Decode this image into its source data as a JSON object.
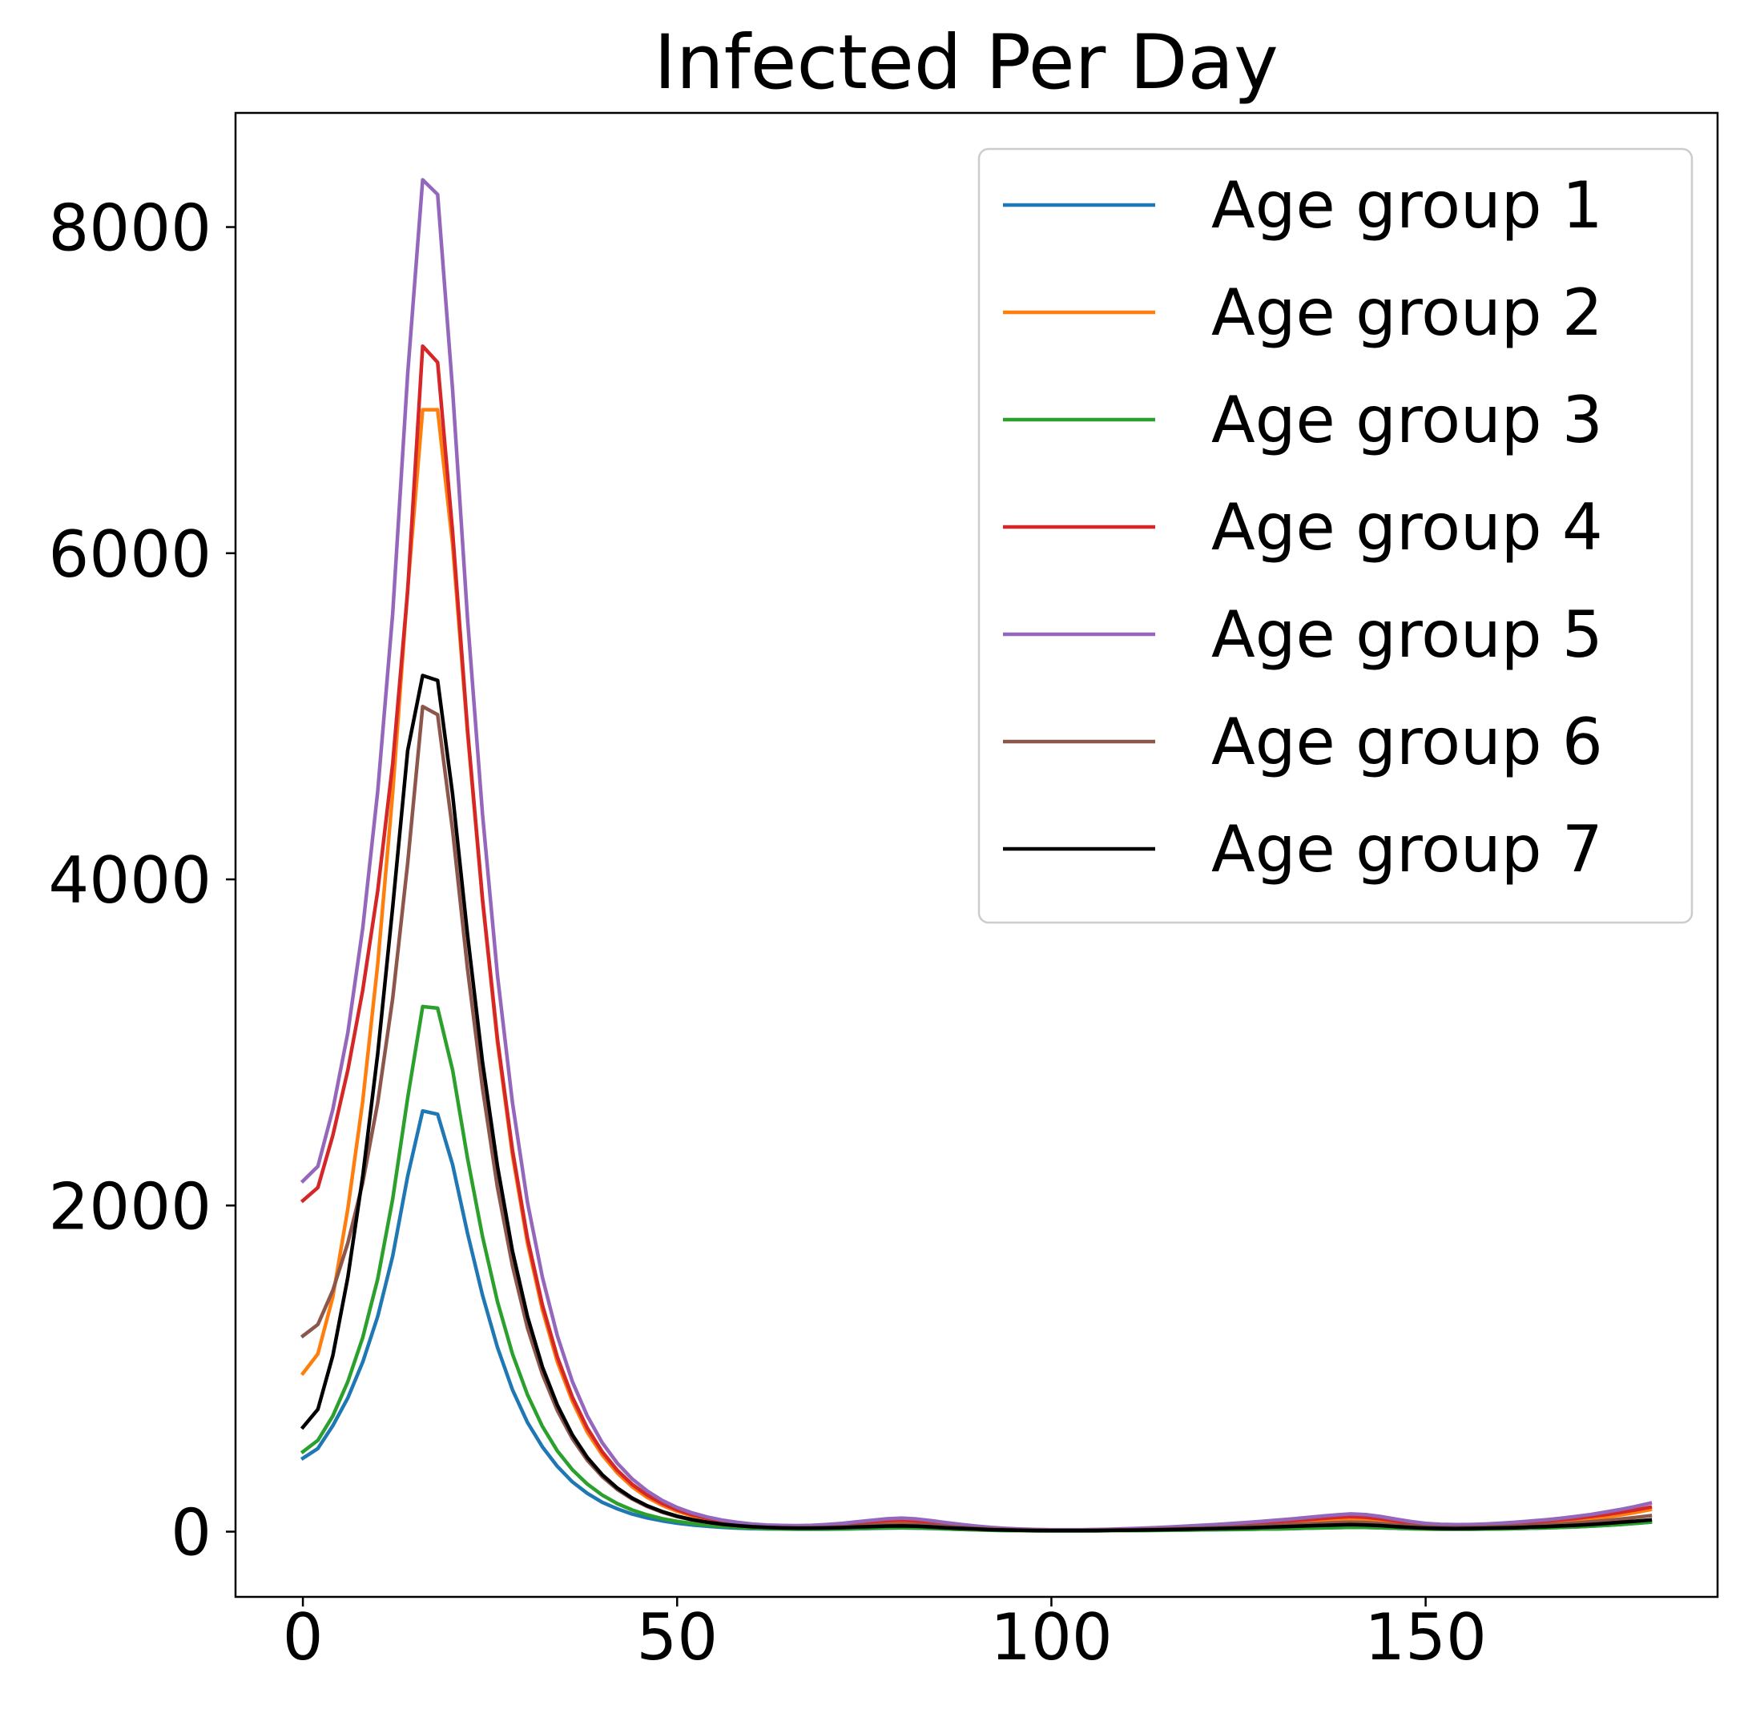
{
  "chart_data": {
    "type": "line",
    "title": "Infected Per Day",
    "xlabel": "",
    "ylabel": "",
    "xlim": [
      -9,
      189
    ],
    "ylim": [
      -400,
      8700
    ],
    "xticks": [
      0,
      50,
      100,
      150
    ],
    "yticks": [
      0,
      2000,
      4000,
      6000,
      8000
    ],
    "grid": false,
    "legend_position": "top-right",
    "x": [
      0,
      2,
      4,
      6,
      8,
      10,
      12,
      14,
      16,
      18,
      20,
      22,
      24,
      26,
      28,
      30,
      32,
      34,
      36,
      38,
      40,
      42,
      44,
      46,
      48,
      50,
      52,
      54,
      56,
      58,
      60,
      62,
      64,
      66,
      68,
      70,
      72,
      74,
      76,
      78,
      80,
      82,
      84,
      86,
      88,
      90,
      92,
      94,
      96,
      98,
      100,
      102,
      104,
      106,
      108,
      110,
      112,
      114,
      116,
      118,
      120,
      122,
      124,
      126,
      128,
      130,
      132,
      134,
      136,
      138,
      140,
      142,
      144,
      146,
      148,
      150,
      152,
      154,
      156,
      158,
      160,
      162,
      164,
      166,
      168,
      170,
      172,
      174,
      176,
      178,
      180
    ],
    "series": [
      {
        "name": "Age group 1",
        "color": "#1f77b4",
        "values": [
          450,
          510,
          650,
          820,
          1040,
          1320,
          1690,
          2180,
          2580,
          2560,
          2250,
          1830,
          1450,
          1130,
          870,
          670,
          520,
          400,
          305,
          235,
          180,
          140,
          108,
          84,
          66,
          52,
          41,
          33,
          27,
          22,
          19,
          17,
          16,
          15,
          15,
          15,
          16,
          18,
          20,
          22,
          23,
          22,
          20,
          17,
          14,
          11,
          9,
          7,
          6,
          5,
          5,
          5,
          5,
          5,
          6,
          6,
          7,
          8,
          9,
          10,
          11,
          12,
          13,
          14,
          16,
          17,
          19,
          21,
          23,
          25,
          27,
          26,
          24,
          21,
          18,
          16,
          15,
          15,
          15,
          16,
          17,
          19,
          21,
          23,
          26,
          29,
          33,
          38,
          44,
          51,
          58
        ]
      },
      {
        "name": "Age group 2",
        "color": "#ff7f0e",
        "values": [
          970,
          1090,
          1440,
          1980,
          2640,
          3480,
          4530,
          5780,
          6880,
          6880,
          6050,
          4900,
          3870,
          3000,
          2310,
          1770,
          1360,
          1040,
          800,
          610,
          470,
          360,
          275,
          210,
          162,
          125,
          97,
          76,
          60,
          48,
          40,
          34,
          31,
          30,
          31,
          34,
          38,
          43,
          49,
          55,
          58,
          55,
          48,
          40,
          32,
          25,
          19,
          15,
          12,
          10,
          9,
          9,
          9,
          10,
          11,
          13,
          15,
          17,
          20,
          23,
          26,
          29,
          33,
          37,
          42,
          47,
          52,
          58,
          64,
          70,
          75,
          72,
          64,
          53,
          43,
          36,
          32,
          31,
          32,
          34,
          38,
          42,
          47,
          53,
          60,
          68,
          78,
          89,
          102,
          117,
          135
        ]
      },
      {
        "name": "Age group 3",
        "color": "#2ca02c",
        "values": [
          490,
          560,
          710,
          920,
          1190,
          1550,
          2040,
          2660,
          3220,
          3210,
          2830,
          2290,
          1810,
          1410,
          1090,
          840,
          645,
          495,
          380,
          292,
          224,
          172,
          133,
          103,
          80,
          63,
          50,
          40,
          32,
          26,
          22,
          19,
          17,
          16,
          16,
          16,
          17,
          19,
          21,
          23,
          24,
          23,
          20,
          17,
          14,
          11,
          9,
          7,
          6,
          5,
          5,
          5,
          5,
          5,
          6,
          6,
          7,
          8,
          9,
          10,
          11,
          12,
          13,
          14,
          16,
          17,
          19,
          21,
          23,
          25,
          27,
          26,
          24,
          21,
          18,
          16,
          15,
          15,
          15,
          16,
          17,
          19,
          21,
          23,
          26,
          29,
          33,
          38,
          44,
          51,
          58
        ]
      },
      {
        "name": "Age group 4",
        "color": "#d62728",
        "values": [
          2030,
          2110,
          2430,
          2830,
          3320,
          3930,
          4710,
          5770,
          7270,
          7170,
          6130,
          4920,
          3880,
          3020,
          2340,
          1800,
          1390,
          1070,
          825,
          635,
          490,
          377,
          290,
          224,
          173,
          134,
          104,
          82,
          65,
          52,
          43,
          37,
          34,
          33,
          35,
          39,
          45,
          52,
          60,
          67,
          70,
          66,
          57,
          47,
          38,
          30,
          23,
          18,
          14,
          12,
          11,
          11,
          11,
          12,
          14,
          16,
          19,
          22,
          26,
          30,
          34,
          38,
          43,
          48,
          54,
          60,
          66,
          73,
          80,
          87,
          92,
          88,
          78,
          65,
          53,
          44,
          39,
          38,
          39,
          42,
          46,
          51,
          57,
          64,
          72,
          81,
          92,
          104,
          118,
          133,
          150
        ]
      },
      {
        "name": "Age group 5",
        "color": "#9467bd",
        "values": [
          2150,
          2240,
          2590,
          3060,
          3700,
          4540,
          5630,
          7100,
          8290,
          8200,
          7000,
          5600,
          4400,
          3410,
          2630,
          2020,
          1560,
          1200,
          920,
          710,
          545,
          420,
          323,
          249,
          192,
          148,
          115,
          90,
          71,
          57,
          47,
          41,
          38,
          37,
          39,
          44,
          51,
          60,
          70,
          79,
          83,
          78,
          67,
          55,
          44,
          34,
          26,
          20,
          16,
          13,
          12,
          12,
          12,
          13,
          15,
          18,
          21,
          25,
          29,
          34,
          39,
          44,
          50,
          56,
          63,
          70,
          78,
          86,
          95,
          103,
          109,
          105,
          93,
          77,
          62,
          51,
          45,
          43,
          44,
          47,
          52,
          58,
          65,
          73,
          82,
          93,
          105,
          120,
          136,
          154,
          175
        ]
      },
      {
        "name": "Age group 6",
        "color": "#8c564b",
        "values": [
          1200,
          1270,
          1480,
          1770,
          2140,
          2630,
          3270,
          4100,
          5060,
          5010,
          4300,
          3450,
          2720,
          2110,
          1630,
          1250,
          965,
          742,
          570,
          438,
          337,
          259,
          200,
          154,
          119,
          92,
          72,
          57,
          45,
          37,
          31,
          27,
          25,
          24,
          25,
          27,
          30,
          34,
          39,
          43,
          45,
          43,
          38,
          32,
          26,
          20,
          16,
          13,
          10,
          9,
          8,
          8,
          8,
          9,
          10,
          11,
          13,
          15,
          17,
          20,
          22,
          25,
          28,
          31,
          35,
          39,
          43,
          47,
          51,
          55,
          58,
          56,
          50,
          42,
          35,
          30,
          27,
          26,
          27,
          29,
          31,
          34,
          38,
          42,
          47,
          53,
          60,
          68,
          77,
          87,
          98
        ]
      },
      {
        "name": "Age group 7",
        "color": "#000000",
        "values": [
          640,
          750,
          1080,
          1560,
          2180,
          2930,
          3830,
          4790,
          5250,
          5220,
          4520,
          3660,
          2880,
          2240,
          1720,
          1320,
          1010,
          775,
          593,
          455,
          349,
          268,
          206,
          159,
          123,
          95,
          74,
          58,
          46,
          37,
          30,
          26,
          23,
          22,
          22,
          23,
          25,
          28,
          31,
          34,
          35,
          33,
          29,
          24,
          20,
          16,
          12,
          10,
          8,
          7,
          6,
          6,
          6,
          7,
          8,
          9,
          10,
          11,
          13,
          15,
          17,
          19,
          21,
          23,
          26,
          29,
          32,
          35,
          38,
          41,
          43,
          41,
          37,
          31,
          26,
          22,
          20,
          19,
          20,
          21,
          23,
          25,
          28,
          31,
          35,
          39,
          44,
          50,
          57,
          64,
          72
        ]
      }
    ]
  }
}
